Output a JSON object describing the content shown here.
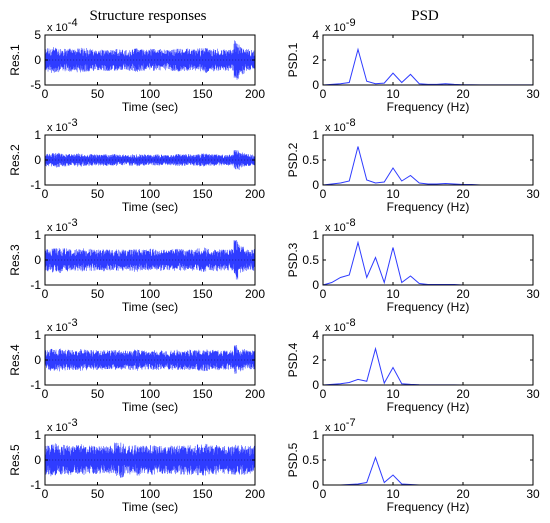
{
  "colors": {
    "signal": "#2f3cff",
    "axis": "#000000",
    "background": "#ffffff"
  },
  "column_titles": {
    "left": "Structure responses",
    "right": "PSD"
  },
  "chart_data": [
    {
      "type": "area",
      "subplot": "time-1",
      "xlabel": "Time (sec)",
      "ylabel": "Res.1",
      "scale_base": "x 10",
      "scale_exp": "-4",
      "xlim": [
        0,
        200
      ],
      "ylim": [
        -5,
        5
      ],
      "xticks": [
        "0",
        "50",
        "100",
        "150",
        "200"
      ],
      "yticks": [
        "-5",
        "0",
        "5"
      ],
      "amplitude": [
        2.4,
        2.6,
        2.5,
        2.3,
        2.4,
        2.2,
        2.5,
        2.4,
        2.3,
        2.2,
        2.1,
        2.2,
        2.2,
        2.3,
        2.1,
        2.0,
        2.2,
        2.4,
        2.2,
        2.1,
        2.3,
        2.2,
        2.1,
        2.0,
        2.2,
        2.3,
        2.2,
        2.3,
        2.2,
        2.4,
        2.6,
        2.2,
        2.3,
        2.1,
        2.2,
        2.2,
        4.0,
        2.9,
        2.2,
        2.1
      ]
    },
    {
      "type": "area",
      "subplot": "time-2",
      "xlabel": "Time (sec)",
      "ylabel": "Res.2",
      "scale_base": "x 10",
      "scale_exp": "-3",
      "xlim": [
        0,
        200
      ],
      "ylim": [
        -1,
        1
      ],
      "xticks": [
        "0",
        "50",
        "100",
        "150",
        "200"
      ],
      "yticks": [
        "-1",
        "0",
        "1"
      ],
      "amplitude": [
        0.25,
        0.28,
        0.3,
        0.26,
        0.25,
        0.24,
        0.27,
        0.25,
        0.24,
        0.23,
        0.22,
        0.24,
        0.23,
        0.24,
        0.22,
        0.21,
        0.23,
        0.25,
        0.23,
        0.22,
        0.24,
        0.23,
        0.22,
        0.21,
        0.23,
        0.24,
        0.23,
        0.24,
        0.23,
        0.25,
        0.26,
        0.24,
        0.24,
        0.22,
        0.23,
        0.23,
        0.42,
        0.3,
        0.24,
        0.23
      ]
    },
    {
      "type": "area",
      "subplot": "time-3",
      "xlabel": "Time (sec)",
      "ylabel": "Res.3",
      "scale_base": "x 10",
      "scale_exp": "-3",
      "xlim": [
        0,
        200
      ],
      "ylim": [
        -1,
        1
      ],
      "xticks": [
        "0",
        "50",
        "100",
        "150",
        "200"
      ],
      "yticks": [
        "-1",
        "0",
        "1"
      ],
      "amplitude": [
        0.45,
        0.5,
        0.55,
        0.48,
        0.46,
        0.44,
        0.5,
        0.47,
        0.45,
        0.43,
        0.42,
        0.45,
        0.43,
        0.44,
        0.42,
        0.4,
        0.43,
        0.47,
        0.43,
        0.42,
        0.45,
        0.43,
        0.42,
        0.41,
        0.43,
        0.45,
        0.43,
        0.45,
        0.43,
        0.47,
        0.5,
        0.44,
        0.45,
        0.42,
        0.43,
        0.44,
        0.8,
        0.55,
        0.45,
        0.43
      ]
    },
    {
      "type": "area",
      "subplot": "time-4",
      "xlabel": "Time (sec)",
      "ylabel": "Res.4",
      "scale_base": "x 10",
      "scale_exp": "-3",
      "xlim": [
        0,
        200
      ],
      "ylim": [
        -1,
        1
      ],
      "xticks": [
        "0",
        "50",
        "100",
        "150",
        "200"
      ],
      "yticks": [
        "-1",
        "0",
        "1"
      ],
      "amplitude": [
        0.4,
        0.45,
        0.47,
        0.43,
        0.42,
        0.4,
        0.44,
        0.42,
        0.41,
        0.4,
        0.39,
        0.41,
        0.4,
        0.41,
        0.39,
        0.38,
        0.4,
        0.43,
        0.4,
        0.39,
        0.41,
        0.4,
        0.39,
        0.38,
        0.4,
        0.41,
        0.4,
        0.42,
        0.4,
        0.43,
        0.45,
        0.41,
        0.42,
        0.39,
        0.4,
        0.4,
        0.6,
        0.45,
        0.42,
        0.4
      ]
    },
    {
      "type": "area",
      "subplot": "time-5",
      "xlabel": "Time (sec)",
      "ylabel": "Res.5",
      "scale_base": "x 10",
      "scale_exp": "-3",
      "xlim": [
        0,
        200
      ],
      "ylim": [
        -1,
        1
      ],
      "xticks": [
        "0",
        "50",
        "100",
        "150",
        "200"
      ],
      "yticks": [
        "-1",
        "0",
        "1"
      ],
      "amplitude": [
        0.6,
        0.65,
        0.68,
        0.62,
        0.6,
        0.58,
        0.63,
        0.6,
        0.58,
        0.57,
        0.56,
        0.58,
        0.57,
        0.7,
        0.72,
        0.56,
        0.58,
        0.62,
        0.58,
        0.57,
        0.6,
        0.58,
        0.57,
        0.56,
        0.58,
        0.6,
        0.58,
        0.6,
        0.58,
        0.62,
        0.65,
        0.59,
        0.6,
        0.57,
        0.58,
        0.59,
        0.62,
        0.6,
        0.58,
        0.57
      ]
    },
    {
      "type": "line",
      "subplot": "psd-1",
      "xlabel": "Frequency (Hz)",
      "ylabel": "PSD.1",
      "scale_base": "x 10",
      "scale_exp": "-9",
      "xlim": [
        0,
        30
      ],
      "ylim": [
        0,
        4
      ],
      "xticks": [
        "0",
        "10",
        "20",
        "30"
      ],
      "yticks": [
        "0",
        "2",
        "4"
      ],
      "x": [
        0,
        1.25,
        2.5,
        3.75,
        5,
        6.25,
        7.5,
        8.75,
        10,
        11.25,
        12.5,
        13.75,
        15,
        16.25,
        17.5,
        18.75,
        20,
        21.25,
        22.5,
        23.75,
        25,
        26.25,
        27.5,
        28.75,
        30
      ],
      "y": [
        0,
        0.05,
        0.1,
        0.2,
        2.85,
        0.3,
        0.1,
        0.15,
        0.95,
        0.2,
        0.85,
        0.1,
        0.05,
        0.05,
        0.1,
        0.05,
        0.02,
        0.02,
        0.01,
        0.01,
        0.01,
        0.01,
        0.01,
        0.01,
        0.01
      ]
    },
    {
      "type": "line",
      "subplot": "psd-2",
      "xlabel": "Frequency (Hz)",
      "ylabel": "PSD.2",
      "scale_base": "x 10",
      "scale_exp": "-8",
      "xlim": [
        0,
        30
      ],
      "ylim": [
        0,
        1
      ],
      "xticks": [
        "0",
        "10",
        "20",
        "30"
      ],
      "yticks": [
        "0",
        "0.5",
        "1"
      ],
      "x": [
        0,
        1.25,
        2.5,
        3.75,
        5,
        6.25,
        7.5,
        8.75,
        10,
        11.25,
        12.5,
        13.75,
        15,
        16.25,
        17.5,
        18.75,
        20,
        21.25,
        22.5,
        23.75,
        25,
        26.25,
        27.5,
        28.75,
        30
      ],
      "y": [
        0,
        0.02,
        0.04,
        0.08,
        0.77,
        0.1,
        0.04,
        0.06,
        0.34,
        0.08,
        0.19,
        0.04,
        0.02,
        0.02,
        0.03,
        0.02,
        0.01,
        0.01,
        0.0,
        0.0,
        0.0,
        0.0,
        0.0,
        0.0,
        0.0
      ]
    },
    {
      "type": "line",
      "subplot": "psd-3",
      "xlabel": "Frequency (Hz)",
      "ylabel": "PSD.3",
      "scale_base": "x 10",
      "scale_exp": "-8",
      "xlim": [
        0,
        30
      ],
      "ylim": [
        0,
        1
      ],
      "xticks": [
        "0",
        "10",
        "20",
        "30"
      ],
      "yticks": [
        "0",
        "0.5",
        "1"
      ],
      "x": [
        0,
        1.25,
        2.5,
        3.75,
        5,
        6.25,
        7.5,
        8.75,
        10,
        11.25,
        12.5,
        13.75,
        15,
        16.25,
        17.5,
        18.75,
        20,
        21.25,
        22.5,
        23.75,
        25,
        26.25,
        27.5,
        28.75,
        30
      ],
      "y": [
        0,
        0.05,
        0.15,
        0.2,
        0.85,
        0.15,
        0.55,
        0.05,
        0.75,
        0.05,
        0.18,
        0.03,
        0.01,
        0.01,
        0.01,
        0.01,
        0.0,
        0.0,
        0.0,
        0.0,
        0.0,
        0.0,
        0.0,
        0.0,
        0.0
      ]
    },
    {
      "type": "line",
      "subplot": "psd-4",
      "xlabel": "Frequency (Hz)",
      "ylabel": "PSD.4",
      "scale_base": "x 10",
      "scale_exp": "-8",
      "xlim": [
        0,
        30
      ],
      "ylim": [
        0,
        4
      ],
      "xticks": [
        "0",
        "10",
        "20",
        "30"
      ],
      "yticks": [
        "0",
        "2",
        "4"
      ],
      "x": [
        0,
        1.25,
        2.5,
        3.75,
        5,
        6.25,
        7.5,
        8.75,
        10,
        11.25,
        12.5,
        13.75,
        15,
        16.25,
        17.5,
        18.75,
        20,
        21.25,
        22.5,
        23.75,
        25,
        26.25,
        27.5,
        28.75,
        30
      ],
      "y": [
        0,
        0.05,
        0.1,
        0.2,
        0.45,
        0.3,
        2.9,
        0.15,
        1.4,
        0.1,
        0.05,
        0.02,
        0.01,
        0.01,
        0.01,
        0.01,
        0.0,
        0.0,
        0.0,
        0.0,
        0.0,
        0.0,
        0.0,
        0.0,
        0.0
      ]
    },
    {
      "type": "line",
      "subplot": "psd-5",
      "xlabel": "Frequency (Hz)",
      "ylabel": "PSD.5",
      "scale_base": "x 10",
      "scale_exp": "-7",
      "xlim": [
        0,
        30
      ],
      "ylim": [
        0,
        1
      ],
      "xticks": [
        "0",
        "10",
        "20",
        "30"
      ],
      "yticks": [
        "0",
        "0.5",
        "1"
      ],
      "x": [
        0,
        1.25,
        2.5,
        3.75,
        5,
        6.25,
        7.5,
        8.75,
        10,
        11.25,
        12.5,
        13.75,
        15,
        16.25,
        17.5,
        18.75,
        20,
        21.25,
        22.5,
        23.75,
        25,
        26.25,
        27.5,
        28.75,
        30
      ],
      "y": [
        0,
        0.0,
        0.0,
        0.01,
        0.02,
        0.05,
        0.55,
        0.05,
        0.2,
        0.02,
        0.01,
        0.0,
        0.0,
        0.0,
        0.0,
        0.0,
        0.0,
        0.0,
        0.0,
        0.0,
        0.0,
        0.0,
        0.0,
        0.0,
        0.0
      ]
    }
  ]
}
